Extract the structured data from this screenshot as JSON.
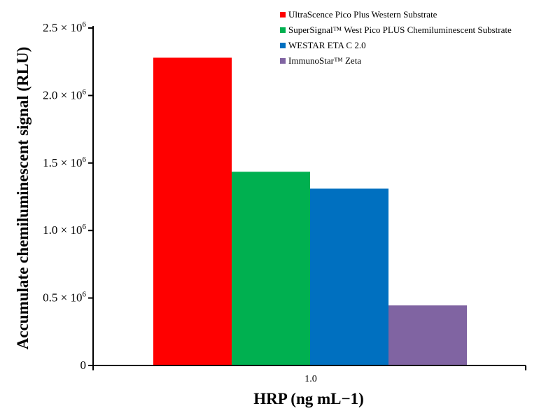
{
  "chart_data": {
    "type": "bar",
    "xlabel": "HRP (ng mL−1)",
    "ylabel": "Accumulate chemiluminescent signal (RLU)",
    "categories": [
      "1.0"
    ],
    "series": [
      {
        "name": "UltraScence Pico Plus Western Substrate",
        "color": "#ff0000",
        "values": [
          2280000
        ]
      },
      {
        "name": "SuperSignal™ West Pico PLUS Chemiluminescent Substrate",
        "color": "#00b050",
        "values": [
          1435000
        ]
      },
      {
        "name": "WESTAR ETA C 2.0",
        "color": "#0070c0",
        "values": [
          1310000
        ]
      },
      {
        "name": "ImmunoStar™ Zeta",
        "color": "#8064a2",
        "values": [
          445000
        ]
      }
    ],
    "ylim": [
      0,
      2500000
    ],
    "yticks": [
      {
        "value": 0,
        "mantissa": "0",
        "exponent": ""
      },
      {
        "value": 500000,
        "mantissa": "0.5 × 10",
        "exponent": "6"
      },
      {
        "value": 1000000,
        "mantissa": "1.0 × 10",
        "exponent": "6"
      },
      {
        "value": 1500000,
        "mantissa": "1.5 × 10",
        "exponent": "6"
      },
      {
        "value": 2000000,
        "mantissa": "2.0 × 10",
        "exponent": "6"
      },
      {
        "value": 2500000,
        "mantissa": "2.5 × 10",
        "exponent": "6"
      }
    ],
    "legend_position": "top-right",
    "grid": false
  }
}
